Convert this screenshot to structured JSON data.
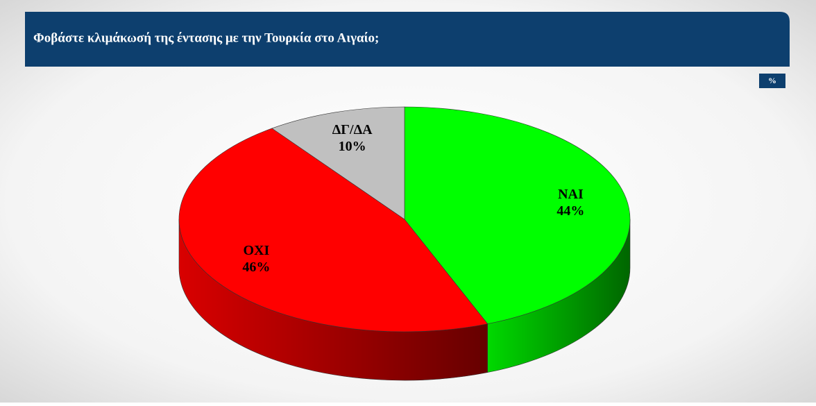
{
  "chart_data": {
    "type": "pie3d",
    "title": "Φοβάστε κλιμάκωσή της έντασης με την Τουρκία στο Αιγαίο;",
    "badge": "%",
    "categories": [
      "NAI",
      "OXI",
      "ΔΓ/ΔΑ"
    ],
    "values": [
      44,
      46,
      10
    ],
    "value_labels": [
      "44%",
      "46%",
      "10%"
    ],
    "colors": [
      "#00ff00",
      "#ff0000",
      "#c0c0c0"
    ]
  }
}
